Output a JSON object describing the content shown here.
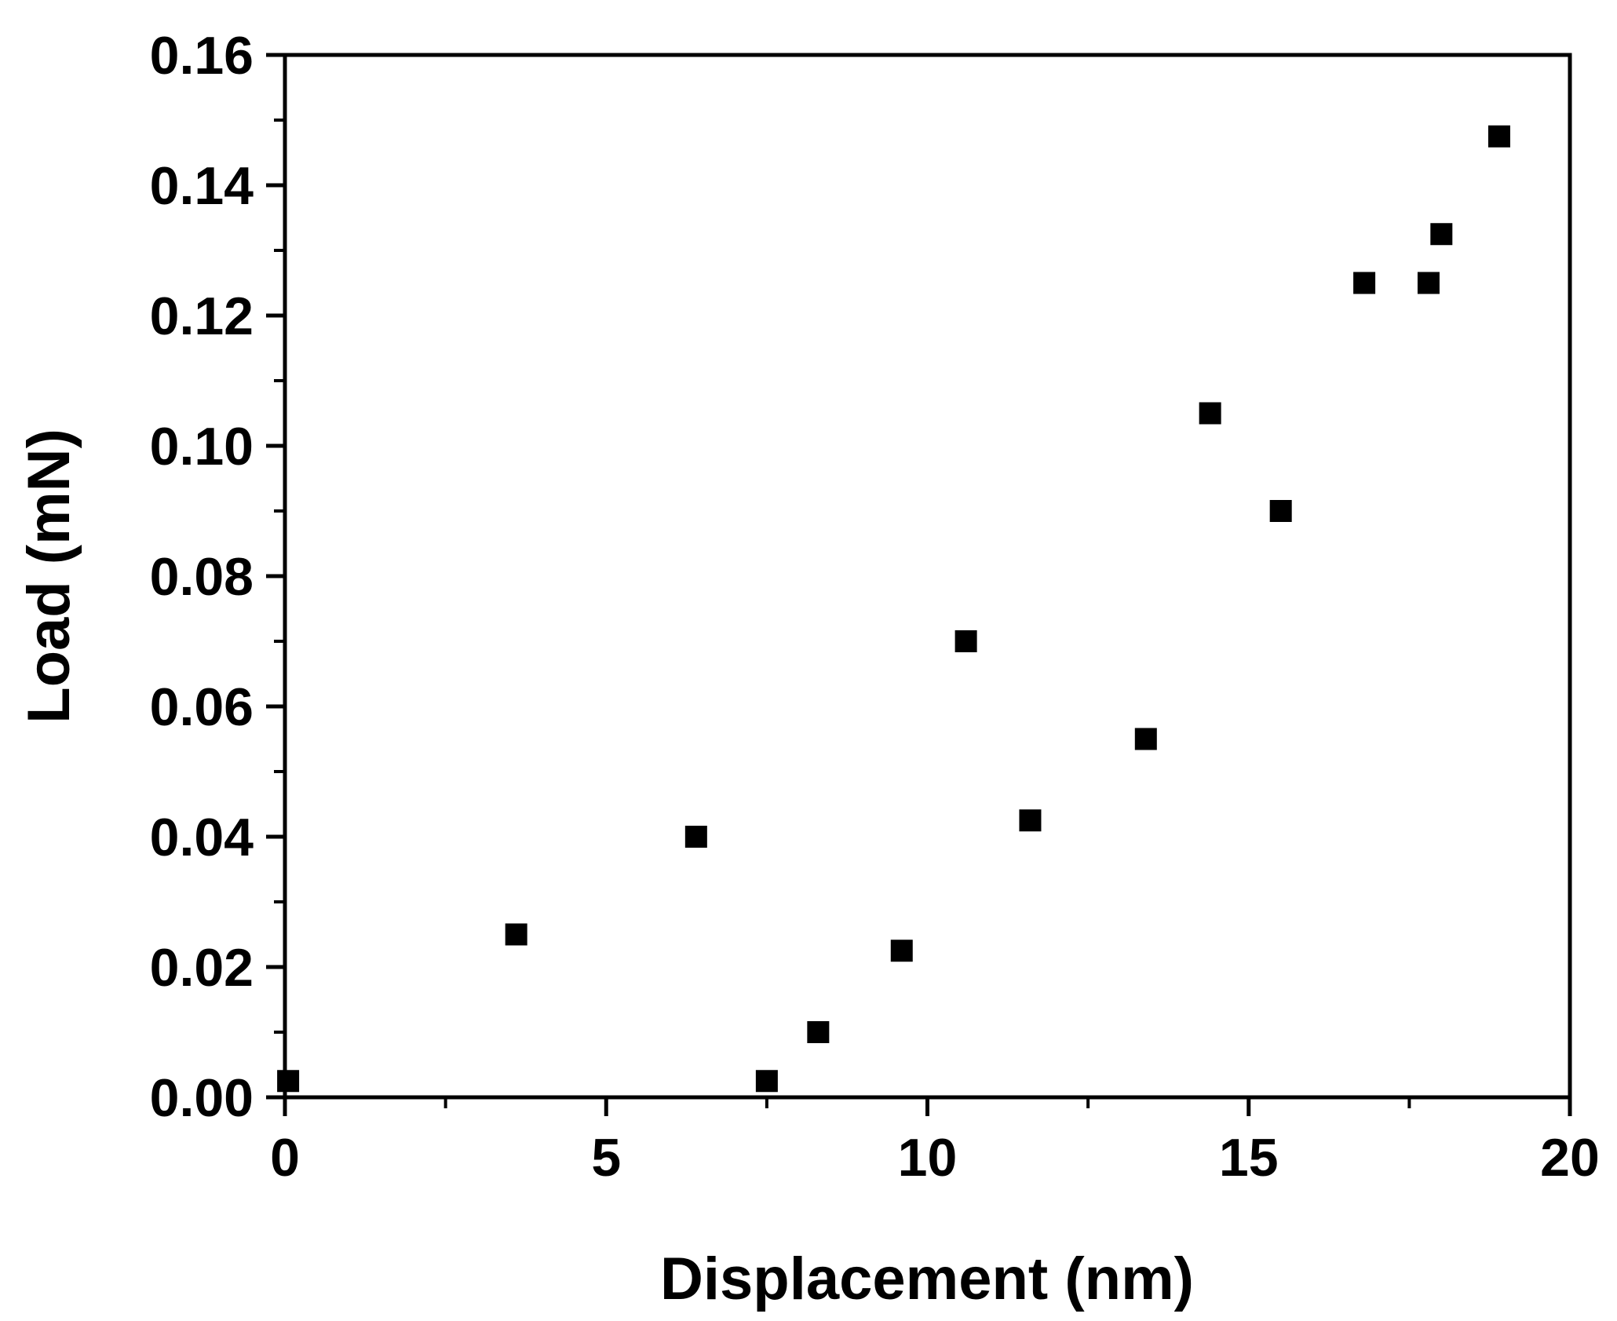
{
  "chart_data": {
    "type": "scatter",
    "xlabel": "Displacement (nm)",
    "ylabel": "Load (mN)",
    "xlim": [
      0,
      20
    ],
    "ylim": [
      0,
      0.16
    ],
    "x_ticks": [
      "0",
      "5",
      "10",
      "15",
      "20"
    ],
    "y_ticks": [
      "0.00",
      "0.02",
      "0.04",
      "0.06",
      "0.08",
      "0.10",
      "0.12",
      "0.14",
      "0.16"
    ],
    "grid": false,
    "marker": "square",
    "marker_color": "#000000",
    "series": [
      {
        "x": [
          0.05,
          3.6,
          6.4,
          7.5,
          8.3,
          9.6,
          10.6,
          11.6,
          13.4,
          14.4,
          15.5,
          16.8,
          17.8,
          18.0,
          18.9
        ],
        "y": [
          0.0025,
          0.025,
          0.04,
          0.0025,
          0.01,
          0.0225,
          0.07,
          0.0425,
          0.055,
          0.105,
          0.09,
          0.125,
          0.125,
          0.1325,
          0.1475
        ]
      }
    ]
  }
}
